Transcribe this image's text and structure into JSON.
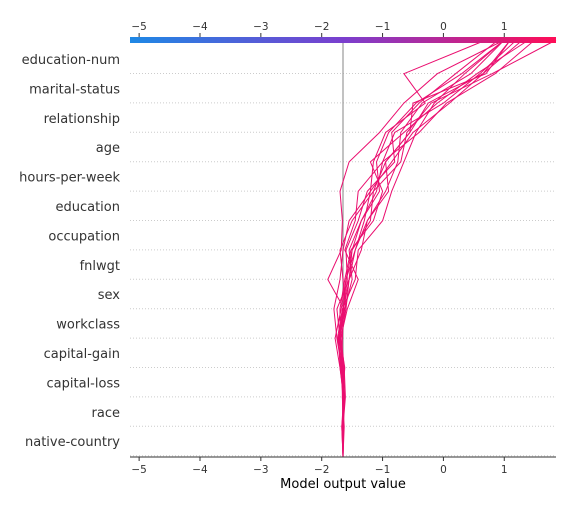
{
  "chart_data": {
    "type": "line",
    "xlabel": "Model output value",
    "xlim": [
      -5.15,
      1.85
    ],
    "ticks": [
      -5,
      -4,
      -3,
      -2,
      -1,
      0,
      1
    ],
    "tick_labels": [
      "−5",
      "−4",
      "−3",
      "−2",
      "−1",
      "0",
      "1"
    ],
    "base_value": -1.65,
    "features": [
      "education-num",
      "marital-status",
      "relationship",
      "age",
      "hours-per-week",
      "education",
      "occupation",
      "fnlwgt",
      "sex",
      "workclass",
      "capital-gain",
      "capital-loss",
      "race",
      "native-country"
    ],
    "line_color": "#ea0e6f",
    "colorbar": {
      "from": "#1e88e5",
      "mid": "#7a3fce",
      "to": "#ff0d57"
    },
    "series": [
      {
        "values": [
          -1.65,
          -1.67,
          -1.62,
          -1.66,
          -1.71,
          -1.63,
          -1.9,
          -1.68,
          -1.66,
          -1.7,
          -1.55,
          -1.05,
          -0.65,
          -0.1,
          1.0
        ]
      },
      {
        "values": [
          -1.65,
          -1.65,
          -1.64,
          -1.68,
          -1.73,
          -1.6,
          -1.55,
          -1.5,
          -1.2,
          -1.15,
          -0.7,
          -0.6,
          -0.2,
          0.8,
          1.85
        ]
      },
      {
        "values": [
          -1.65,
          -1.64,
          -1.66,
          -1.62,
          -1.7,
          -1.75,
          -1.55,
          -1.45,
          -1.3,
          -1.2,
          -0.85,
          -0.5,
          0.1,
          0.65,
          1.3
        ]
      },
      {
        "values": [
          -1.65,
          -1.66,
          -1.63,
          -1.7,
          -1.72,
          -1.65,
          -1.6,
          -1.5,
          -1.35,
          -1.05,
          -1.1,
          -0.9,
          -0.45,
          0.3,
          1.0
        ]
      },
      {
        "values": [
          -1.65,
          -1.63,
          -1.66,
          -1.64,
          -1.69,
          -1.58,
          -1.4,
          -1.62,
          -1.45,
          -1.4,
          -1.0,
          -0.4,
          0.05,
          0.85,
          1.5
        ]
      },
      {
        "values": [
          -1.65,
          -1.65,
          -1.62,
          -1.67,
          -1.75,
          -1.8,
          -1.7,
          -1.65,
          -1.55,
          -1.2,
          -1.15,
          -0.95,
          -0.3,
          -0.65,
          0.7
        ]
      },
      {
        "values": [
          -1.65,
          -1.64,
          -1.64,
          -1.7,
          -1.78,
          -1.68,
          -1.6,
          -1.45,
          -1.25,
          -0.95,
          -0.75,
          -0.7,
          -0.35,
          0.45,
          1.0
        ]
      },
      {
        "values": [
          -1.65,
          -1.66,
          -1.65,
          -1.65,
          -1.7,
          -1.62,
          -1.5,
          -1.55,
          -1.35,
          -1.1,
          -1.0,
          -0.8,
          0.0,
          0.6,
          1.2
        ]
      },
      {
        "values": [
          -1.65,
          -1.65,
          -1.61,
          -1.63,
          -1.68,
          -1.6,
          -1.65,
          -1.7,
          -1.5,
          -1.15,
          -0.95,
          -0.55,
          -0.25,
          0.65,
          1.1
        ]
      },
      {
        "values": [
          -1.65,
          -1.67,
          -1.64,
          -1.66,
          -1.74,
          -1.66,
          -1.45,
          -1.4,
          -1.0,
          -0.85,
          -0.65,
          -0.45,
          -0.15,
          0.35,
          1.0
        ]
      },
      {
        "values": [
          -1.65,
          -1.64,
          -1.65,
          -1.69,
          -1.72,
          -1.64,
          -1.58,
          -1.6,
          -1.4,
          -1.25,
          -0.8,
          -0.85,
          -0.4,
          0.2,
          0.9
        ]
      },
      {
        "values": [
          -1.65,
          -1.66,
          -1.63,
          -1.64,
          -1.7,
          -1.7,
          -1.62,
          -1.52,
          -1.15,
          -1.0,
          -1.2,
          -0.65,
          -0.1,
          0.55,
          1.4
        ]
      },
      {
        "values": [
          -1.65,
          -1.65,
          -1.66,
          -1.67,
          -1.66,
          -1.64,
          -1.55,
          -1.35,
          -1.25,
          -0.9,
          -0.95,
          -0.55,
          -0.5,
          0.7,
          1.1
        ]
      }
    ]
  }
}
